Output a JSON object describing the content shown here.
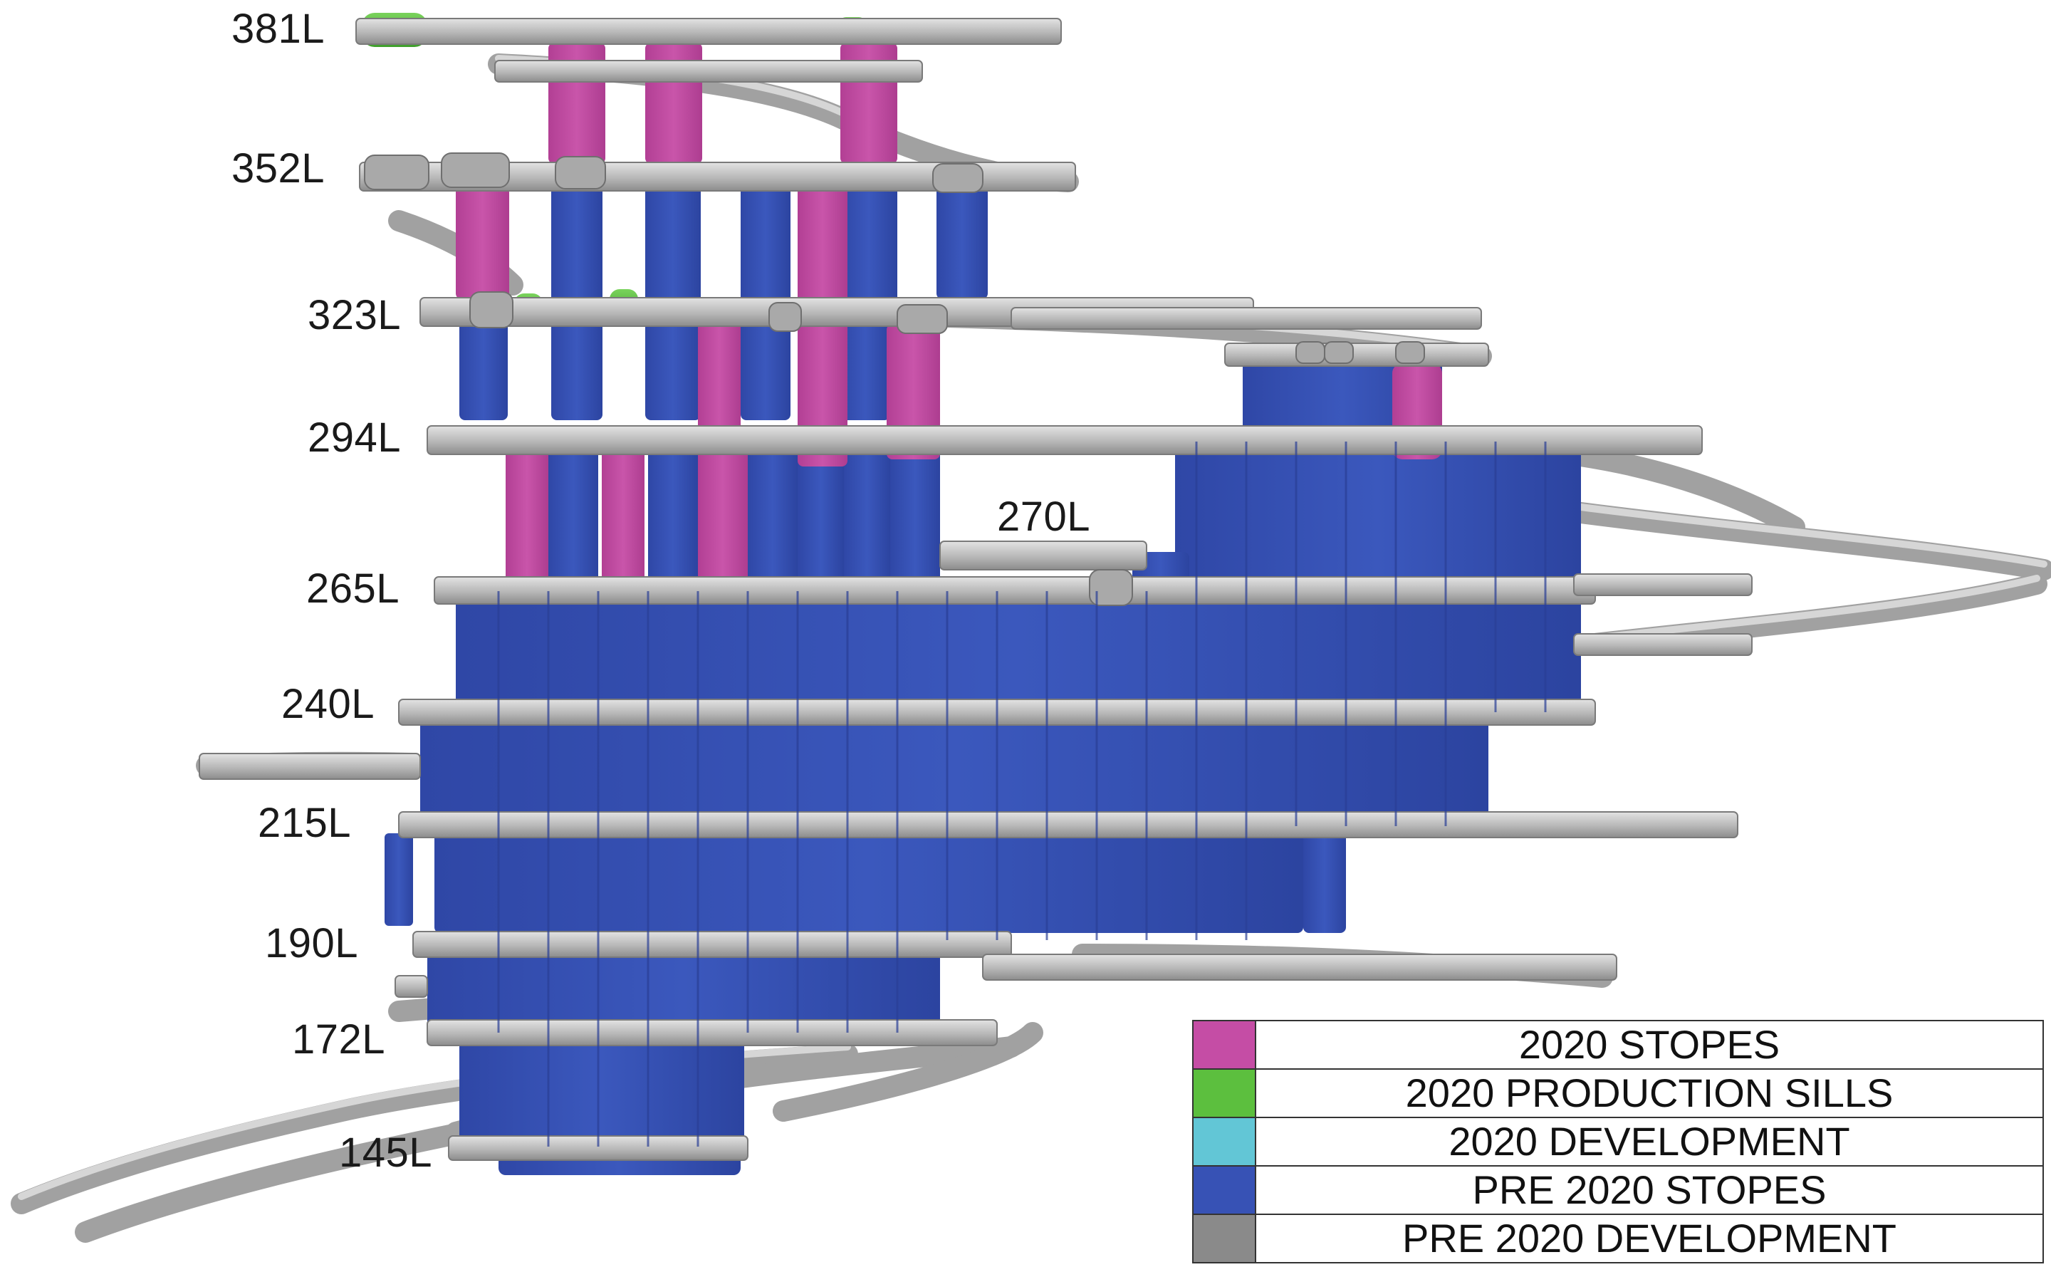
{
  "levels": [
    {
      "id": "381L",
      "label": "381L"
    },
    {
      "id": "352L",
      "label": "352L"
    },
    {
      "id": "323L",
      "label": "323L"
    },
    {
      "id": "294L",
      "label": "294L"
    },
    {
      "id": "270L",
      "label": "270L"
    },
    {
      "id": "265L",
      "label": "265L"
    },
    {
      "id": "240L",
      "label": "240L"
    },
    {
      "id": "215L",
      "label": "215L"
    },
    {
      "id": "190L",
      "label": "190L"
    },
    {
      "id": "172L",
      "label": "172L"
    },
    {
      "id": "145L",
      "label": "145L"
    }
  ],
  "legend": [
    {
      "label": "2020 STOPES",
      "color": "#c54da5"
    },
    {
      "label": "2020 PRODUCTION SILLS",
      "color": "#5cbf3e"
    },
    {
      "label": "2020 DEVELOPMENT",
      "color": "#62c6d6"
    },
    {
      "label": "PRE 2020 STOPES",
      "color": "#3752b5"
    },
    {
      "label": "PRE 2020 DEVELOPMENT",
      "color": "#8a8a8a"
    }
  ],
  "colors": {
    "stope_2020": "#c54da5",
    "sill_2020": "#5cbf3e",
    "stope_pre2020": "#3752b5",
    "development": "#bdbdbd"
  }
}
